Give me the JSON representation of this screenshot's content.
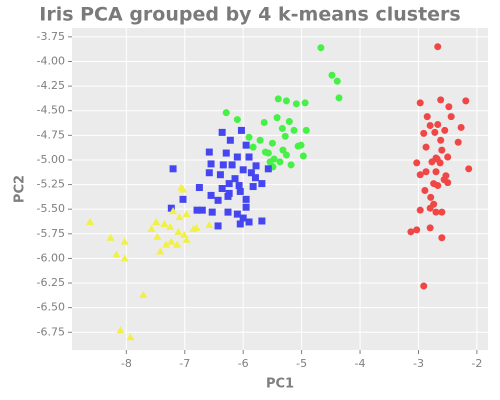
{
  "chart_data": {
    "type": "scatter",
    "title": "Iris PCA grouped by 4 k-means clusters",
    "xlabel": "PC1",
    "ylabel": "PC2",
    "xlim": [
      -8.93,
      -1.81
    ],
    "ylim": [
      -6.93,
      -3.66
    ],
    "xticks": [
      -8,
      -7,
      -6,
      -5,
      -4,
      -3,
      -2
    ],
    "yticks": [
      -3.75,
      {
        "value": -4,
        "label": "-4.00"
      },
      -4.25,
      {
        "value": -4.5,
        "label": "-4.50"
      },
      -4.75,
      {
        "value": -5,
        "label": "-5.00"
      },
      -5.25,
      {
        "value": -5.5,
        "label": "-5.50"
      },
      -5.75,
      {
        "value": -6,
        "label": "-6.00"
      },
      -6.25,
      {
        "value": -6.5,
        "label": "-6.50"
      },
      -6.75
    ],
    "grid": true,
    "series": [
      {
        "color": "#f04646",
        "marker": "circle",
        "x": [
          -2.67,
          -2.97,
          -2.62,
          -2.48,
          -2.19,
          -2.44,
          -2.8,
          -2.67,
          -2.55,
          -2.72,
          -2.27,
          -2.91,
          -2.62,
          -2.32,
          -2.87,
          -2.6,
          -2.68,
          -2.5,
          -3.03,
          -2.77,
          -2.63,
          -2.87,
          -2.7,
          -2.97,
          -2.56,
          -2.53,
          -2.14,
          -2.74,
          -2.67,
          -2.5,
          -2.89,
          -2.79,
          -2.74,
          -2.97,
          -2.8,
          -2.7,
          -2.6,
          -3.03,
          -2.8,
          -3.13,
          -2.6,
          -2.91,
          -2.7,
          -2.85
        ],
        "values": [
          -3.85,
          -4.42,
          -4.39,
          -4.46,
          -4.4,
          -4.56,
          -4.65,
          -4.64,
          -4.7,
          -4.72,
          -4.67,
          -4.73,
          -4.8,
          -4.82,
          -4.87,
          -4.9,
          -4.99,
          -4.97,
          -5.03,
          -5.02,
          -5.03,
          -5.12,
          -5.12,
          -5.15,
          -5.2,
          -5.16,
          -5.09,
          -5.24,
          -5.26,
          -5.23,
          -5.31,
          -5.38,
          -5.45,
          -5.51,
          -5.49,
          -5.53,
          -5.53,
          -5.71,
          -5.69,
          -5.73,
          -5.79,
          -6.28,
          -4.98,
          -4.56
        ]
      },
      {
        "color": "#46f046",
        "marker": "circle",
        "x": [
          -4.67,
          -4.48,
          -4.39,
          -4.36,
          -5.4,
          -5.26,
          -5.09,
          -4.94,
          -6.29,
          -6.1,
          -5.42,
          -5.64,
          -5.21,
          -5.33,
          -5.13,
          -4.92,
          -5.9,
          -5.28,
          -5.71,
          -5.5,
          -5.06,
          -5.83,
          -5.32,
          -5.62,
          -5.26,
          -4.97,
          -5.47,
          -5.37,
          -5.54,
          -5.18,
          -5.49,
          -5.57,
          -5.01
        ],
        "values": [
          -3.86,
          -4.14,
          -4.2,
          -4.37,
          -4.38,
          -4.4,
          -4.43,
          -4.42,
          -4.52,
          -4.59,
          -4.57,
          -4.62,
          -4.61,
          -4.68,
          -4.7,
          -4.7,
          -4.77,
          -4.76,
          -4.8,
          -4.83,
          -4.86,
          -4.87,
          -4.9,
          -4.92,
          -4.95,
          -4.96,
          -4.99,
          -5.02,
          -5.02,
          -5.05,
          -5.07,
          -4.93,
          -4.85
        ]
      },
      {
        "color": "#4646f0",
        "marker": "square",
        "x": [
          -6.03,
          -6.36,
          -6.22,
          -5.95,
          -6.58,
          -6.29,
          -6.1,
          -5.9,
          -6.55,
          -6.34,
          -6.19,
          -5.78,
          -7.2,
          -6.0,
          -5.57,
          -5.86,
          -6.39,
          -6.14,
          -5.79,
          -6.24,
          -6.07,
          -6.36,
          -5.68,
          -6.75,
          -6.05,
          -6.55,
          -6.26,
          -5.95,
          -7.03,
          -6.43,
          -5.83,
          -6.7,
          -6.79,
          -6.53,
          -6.26,
          -5.95,
          -6.1,
          -6.0,
          -5.68,
          -5.9,
          -6.05,
          -6.43,
          -7.23,
          -6.24,
          -6.58
        ],
        "values": [
          -4.7,
          -4.72,
          -4.8,
          -4.85,
          -4.92,
          -4.93,
          -4.97,
          -4.97,
          -5.04,
          -5.05,
          -5.05,
          -5.06,
          -5.09,
          -5.1,
          -5.09,
          -5.13,
          -5.15,
          -5.19,
          -5.18,
          -5.24,
          -5.26,
          -5.29,
          -5.24,
          -5.28,
          -5.32,
          -5.36,
          -5.37,
          -5.4,
          -5.4,
          -5.41,
          -5.27,
          -5.51,
          -5.51,
          -5.53,
          -5.53,
          -5.48,
          -5.55,
          -5.59,
          -5.62,
          -5.63,
          -5.65,
          -5.67,
          -5.49,
          -5.34,
          -5.13
        ]
      },
      {
        "color": "#f0f046",
        "marker": "triangle",
        "x": [
          -8.62,
          -8.27,
          -8.03,
          -8.17,
          -8.03,
          -7.71,
          -8.1,
          -7.93,
          -7.06,
          -7.03,
          -7.2,
          -7.09,
          -6.97,
          -7.49,
          -7.35,
          -7.57,
          -7.25,
          -7.11,
          -6.97,
          -6.8,
          -7.47,
          -7.23,
          -7.42,
          -7.32,
          -7.01,
          -6.58,
          -7.13,
          -6.85
        ],
        "values": [
          -5.63,
          -5.79,
          -5.83,
          -5.96,
          -6.0,
          -6.37,
          -6.73,
          -6.8,
          -5.28,
          -5.3,
          -5.52,
          -5.58,
          -5.55,
          -5.63,
          -5.65,
          -5.7,
          -5.68,
          -5.73,
          -5.81,
          -5.69,
          -5.78,
          -5.83,
          -5.93,
          -5.86,
          -5.76,
          -5.66,
          -5.86,
          -5.7
        ]
      }
    ]
  }
}
